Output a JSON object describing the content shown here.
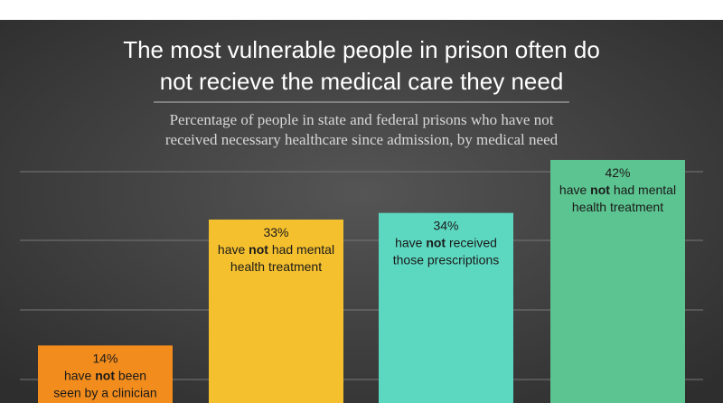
{
  "chart_data": {
    "type": "bar",
    "title_lines": [
      "The most vulnerable people in prison often do",
      "not recieve the medical care they need"
    ],
    "subtitle_lines": [
      "Percentage of people in state and federal prisons who have not",
      "received necessary healthcare since admission, by medical need"
    ],
    "values": [
      14,
      33,
      34,
      42
    ],
    "value_labels": [
      "14%",
      "33%",
      "34%",
      "42%"
    ],
    "annotations": [
      [
        "have",
        "not",
        "been",
        "seen by a clinician"
      ],
      [
        "have",
        "not",
        "had mental",
        "health treatment"
      ],
      [
        "have",
        "not",
        "received",
        "those prescriptions"
      ],
      [
        "have",
        "not",
        "had mental",
        "health treatment"
      ]
    ],
    "colors": [
      "#f28c1c",
      "#f5c02e",
      "#5dd8c0",
      "#5cc490"
    ],
    "ylim": [
      0,
      50
    ]
  }
}
